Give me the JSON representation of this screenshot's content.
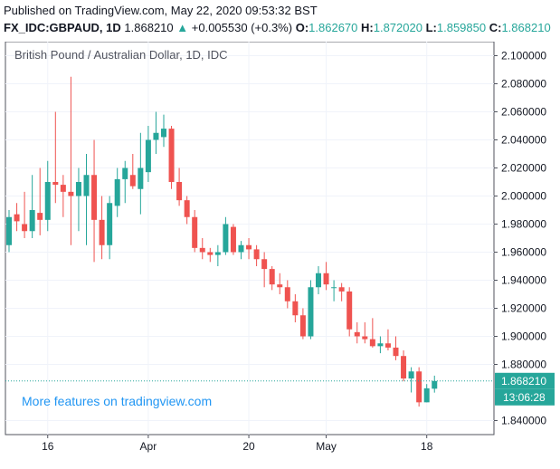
{
  "header": {
    "published": "Published on TradingView.com, May 22, 2020 09:53:32 BST",
    "symbol": "FX_IDC:GBPAUD, 1D",
    "last": "1.868210",
    "arrow": "▲",
    "change": "+0.005530 (+0.3%)",
    "open_label": "O:",
    "open": "1.862670",
    "high_label": "H:",
    "high": "1.872020",
    "low_label": "L:",
    "low": "1.859850",
    "close_label": "C:",
    "close": "1.868210"
  },
  "chart_data": {
    "type": "candlestick",
    "title": "British Pound / Australian Dollar, 1D, IDC",
    "watermark": "More features on tradingview.com",
    "ylim": [
      1.83,
      2.11
    ],
    "y_ticks": [
      "2.100000",
      "2.080000",
      "2.060000",
      "2.040000",
      "2.020000",
      "2.000000",
      "1.980000",
      "1.960000",
      "1.940000",
      "1.920000",
      "1.900000",
      "1.880000",
      "1.840000"
    ],
    "x_ticks": [
      {
        "label": "16",
        "index": 5
      },
      {
        "label": "Apr",
        "index": 18
      },
      {
        "label": "20",
        "index": 31
      },
      {
        "label": "May",
        "index": 41
      },
      {
        "label": "18",
        "index": 54
      }
    ],
    "last_price": 1.86821,
    "last_price_label": "1.868210",
    "countdown_label": "13:06:28",
    "colors": {
      "up": "#26a69a",
      "down": "#ef5350",
      "grid": "#f0f3fa",
      "axis": "#50535e"
    },
    "candles": [
      {
        "o": 1.965,
        "h": 1.99,
        "l": 1.96,
        "c": 1.985
      },
      {
        "o": 1.987,
        "h": 1.995,
        "l": 1.975,
        "c": 1.982
      },
      {
        "o": 1.98,
        "h": 2.003,
        "l": 1.97,
        "c": 1.975
      },
      {
        "o": 1.975,
        "h": 2.015,
        "l": 1.97,
        "c": 1.99
      },
      {
        "o": 1.988,
        "h": 2.02,
        "l": 1.972,
        "c": 1.983
      },
      {
        "o": 1.983,
        "h": 2.025,
        "l": 1.975,
        "c": 2.01
      },
      {
        "o": 2.01,
        "h": 2.06,
        "l": 1.995,
        "c": 2.008
      },
      {
        "o": 2.008,
        "h": 2.015,
        "l": 1.985,
        "c": 2.003
      },
      {
        "o": 2.003,
        "h": 2.085,
        "l": 1.965,
        "c": 2.0
      },
      {
        "o": 2.0,
        "h": 2.02,
        "l": 1.975,
        "c": 2.01
      },
      {
        "o": 2.0,
        "h": 2.03,
        "l": 1.965,
        "c": 2.015
      },
      {
        "o": 2.015,
        "h": 2.04,
        "l": 1.953,
        "c": 1.983
      },
      {
        "o": 1.983,
        "h": 2.0,
        "l": 1.955,
        "c": 1.965
      },
      {
        "o": 1.965,
        "h": 2.0,
        "l": 1.955,
        "c": 1.995
      },
      {
        "o": 1.993,
        "h": 2.02,
        "l": 1.985,
        "c": 2.012
      },
      {
        "o": 2.012,
        "h": 2.025,
        "l": 1.995,
        "c": 2.02
      },
      {
        "o": 2.015,
        "h": 2.03,
        "l": 2.005,
        "c": 2.007
      },
      {
        "o": 2.005,
        "h": 2.045,
        "l": 1.987,
        "c": 2.02
      },
      {
        "o": 2.017,
        "h": 2.05,
        "l": 2.01,
        "c": 2.04
      },
      {
        "o": 2.04,
        "h": 2.06,
        "l": 2.03,
        "c": 2.045
      },
      {
        "o": 2.042,
        "h": 2.058,
        "l": 2.035,
        "c": 2.048
      },
      {
        "o": 2.048,
        "h": 2.05,
        "l": 2.005,
        "c": 2.01
      },
      {
        "o": 2.01,
        "h": 2.02,
        "l": 1.993,
        "c": 1.997
      },
      {
        "o": 1.997,
        "h": 2.0,
        "l": 1.98,
        "c": 1.985
      },
      {
        "o": 1.985,
        "h": 1.99,
        "l": 1.96,
        "c": 1.963
      },
      {
        "o": 1.963,
        "h": 1.97,
        "l": 1.955,
        "c": 1.96
      },
      {
        "o": 1.96,
        "h": 1.963,
        "l": 1.953,
        "c": 1.958
      },
      {
        "o": 1.958,
        "h": 1.965,
        "l": 1.95,
        "c": 1.96
      },
      {
        "o": 1.96,
        "h": 1.985,
        "l": 1.958,
        "c": 1.98
      },
      {
        "o": 1.978,
        "h": 1.98,
        "l": 1.958,
        "c": 1.96
      },
      {
        "o": 1.96,
        "h": 1.968,
        "l": 1.955,
        "c": 1.965
      },
      {
        "o": 1.965,
        "h": 1.97,
        "l": 1.955,
        "c": 1.962
      },
      {
        "o": 1.962,
        "h": 1.965,
        "l": 1.95,
        "c": 1.955
      },
      {
        "o": 1.955,
        "h": 1.96,
        "l": 1.935,
        "c": 1.948
      },
      {
        "o": 1.948,
        "h": 1.95,
        "l": 1.933,
        "c": 1.937
      },
      {
        "o": 1.937,
        "h": 1.945,
        "l": 1.93,
        "c": 1.935
      },
      {
        "o": 1.935,
        "h": 1.94,
        "l": 1.92,
        "c": 1.925
      },
      {
        "o": 1.925,
        "h": 1.93,
        "l": 1.91,
        "c": 1.915
      },
      {
        "o": 1.915,
        "h": 1.92,
        "l": 1.898,
        "c": 1.9
      },
      {
        "o": 1.9,
        "h": 1.94,
        "l": 1.898,
        "c": 1.935
      },
      {
        "o": 1.935,
        "h": 1.95,
        "l": 1.93,
        "c": 1.945
      },
      {
        "o": 1.945,
        "h": 1.953,
        "l": 1.933,
        "c": 1.937
      },
      {
        "o": 1.935,
        "h": 1.94,
        "l": 1.925,
        "c": 1.935
      },
      {
        "o": 1.935,
        "h": 1.938,
        "l": 1.925,
        "c": 1.932
      },
      {
        "o": 1.932,
        "h": 1.935,
        "l": 1.9,
        "c": 1.905
      },
      {
        "o": 1.903,
        "h": 1.91,
        "l": 1.895,
        "c": 1.9
      },
      {
        "o": 1.9,
        "h": 1.91,
        "l": 1.895,
        "c": 1.898
      },
      {
        "o": 1.898,
        "h": 1.913,
        "l": 1.892,
        "c": 1.893
      },
      {
        "o": 1.893,
        "h": 1.9,
        "l": 1.888,
        "c": 1.895
      },
      {
        "o": 1.895,
        "h": 1.905,
        "l": 1.89,
        "c": 1.892
      },
      {
        "o": 1.892,
        "h": 1.9,
        "l": 1.883,
        "c": 1.886
      },
      {
        "o": 1.886,
        "h": 1.89,
        "l": 1.868,
        "c": 1.87
      },
      {
        "o": 1.87,
        "h": 1.878,
        "l": 1.86,
        "c": 1.875
      },
      {
        "o": 1.875,
        "h": 1.878,
        "l": 1.85,
        "c": 1.853
      },
      {
        "o": 1.853,
        "h": 1.866,
        "l": 1.853,
        "c": 1.863
      },
      {
        "o": 1.8627,
        "h": 1.872,
        "l": 1.8599,
        "c": 1.8682
      }
    ]
  }
}
